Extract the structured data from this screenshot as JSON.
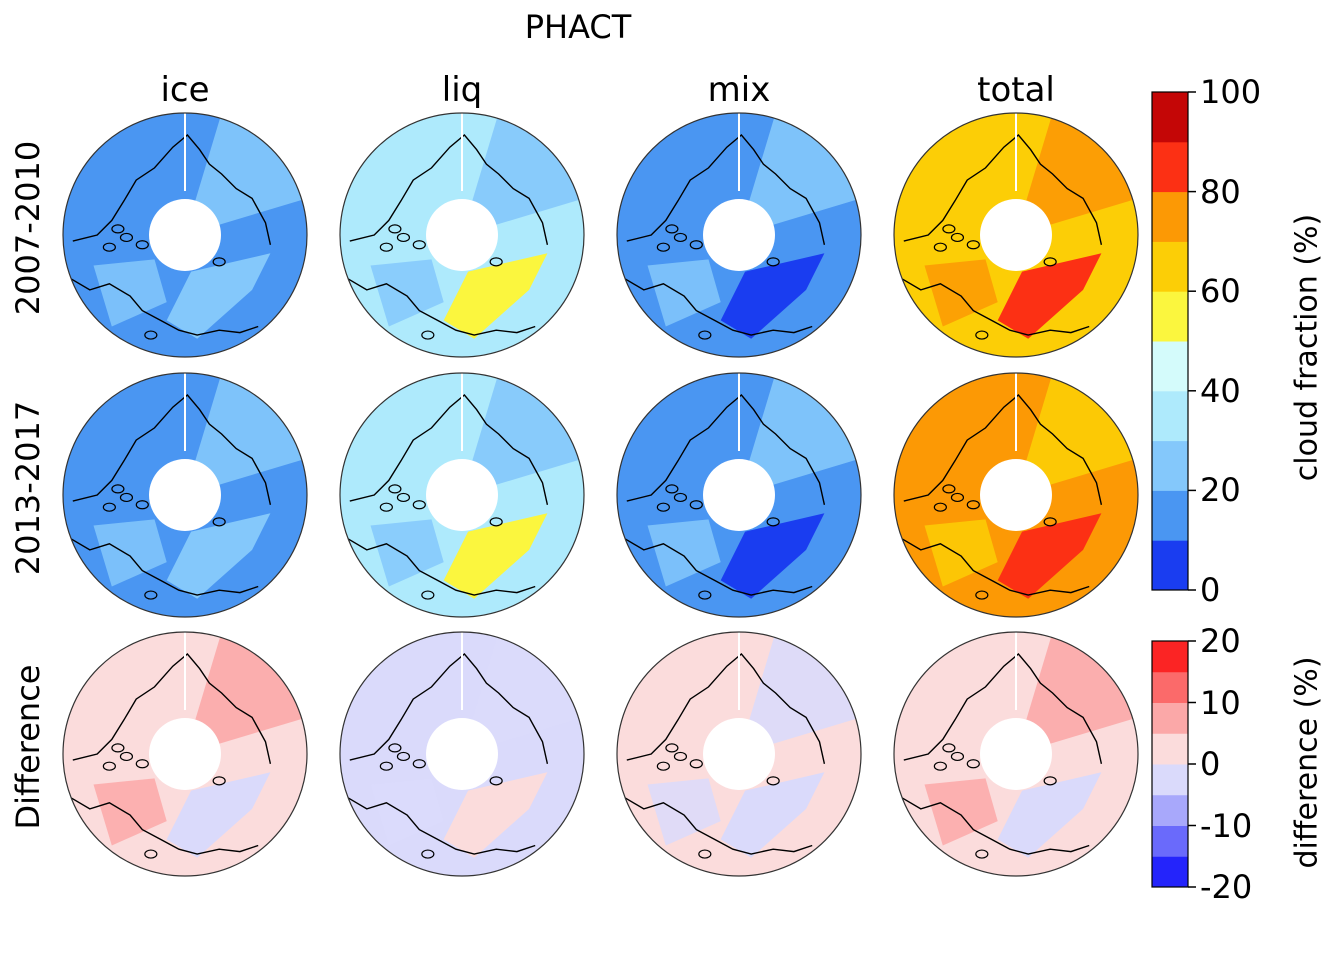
{
  "title": "PHACT",
  "columns": [
    "ice",
    "liq",
    "mix",
    "total"
  ],
  "rows": [
    "2007-2010",
    "2013-2017",
    "Difference"
  ],
  "colorbars": {
    "cloud_fraction": {
      "label": "cloud fraction (%)",
      "ticks": [
        "0",
        "20",
        "40",
        "60",
        "80",
        "100"
      ],
      "levels": [
        0,
        10,
        20,
        30,
        40,
        50,
        60,
        70,
        80,
        90,
        100
      ],
      "colors": [
        "#1a3df0",
        "#4a96f2",
        "#84c8fb",
        "#aeeafc",
        "#d4fbfb",
        "#fbf63e",
        "#fcce06",
        "#fc9905",
        "#fc3014",
        "#c40606"
      ]
    },
    "difference": {
      "label": "difference (%)",
      "ticks": [
        "-20",
        "-10",
        "0",
        "10",
        "20"
      ],
      "levels": [
        -20,
        -15,
        -10,
        -5,
        0,
        5,
        10,
        15,
        20
      ],
      "colors": [
        "#2424fb",
        "#6a6afb",
        "#a8a8fb",
        "#dadafb",
        "#fbdcdc",
        "#fba8a8",
        "#fb6a6a",
        "#fb2424"
      ]
    }
  },
  "panels": [
    {
      "row": "2007-2010",
      "column": "ice",
      "base": "#4a96f2",
      "patch": "#84c8fb",
      "patch2": "#84c8fb"
    },
    {
      "row": "2007-2010",
      "column": "liq",
      "base": "#aeeafc",
      "patch": "#fbf63e",
      "patch2": "#84c8fb"
    },
    {
      "row": "2007-2010",
      "column": "mix",
      "base": "#4a96f2",
      "patch": "#1a3df0",
      "patch2": "#84c8fb"
    },
    {
      "row": "2007-2010",
      "column": "total",
      "base": "#fcce06",
      "patch": "#fc3014",
      "patch2": "#fc9905"
    },
    {
      "row": "2013-2017",
      "column": "ice",
      "base": "#4a96f2",
      "patch": "#84c8fb",
      "patch2": "#84c8fb"
    },
    {
      "row": "2013-2017",
      "column": "liq",
      "base": "#aeeafc",
      "patch": "#fbf63e",
      "patch2": "#84c8fb"
    },
    {
      "row": "2013-2017",
      "column": "mix",
      "base": "#4a96f2",
      "patch": "#1a3df0",
      "patch2": "#84c8fb"
    },
    {
      "row": "2013-2017",
      "column": "total",
      "base": "#fc9905",
      "patch": "#fc3014",
      "patch2": "#fcce06"
    },
    {
      "row": "Difference",
      "column": "ice",
      "base": "#fbdcdc",
      "patch": "#dadafb",
      "patch2": "#fba8a8"
    },
    {
      "row": "Difference",
      "column": "liq",
      "base": "#dadafb",
      "patch": "#fbdcdc",
      "patch2": "#dadafb"
    },
    {
      "row": "Difference",
      "column": "mix",
      "base": "#fbdcdc",
      "patch": "#dadafb",
      "patch2": "#dadafb"
    },
    {
      "row": "Difference",
      "column": "total",
      "base": "#fbdcdc",
      "patch": "#dadafb",
      "patch2": "#fba8a8"
    }
  ]
}
